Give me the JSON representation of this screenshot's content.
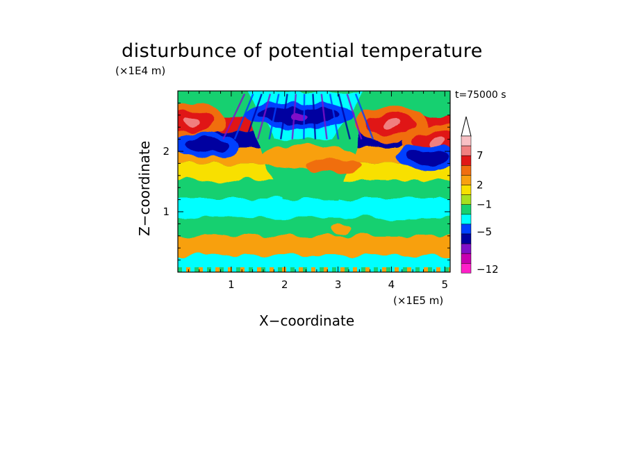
{
  "chart_data": {
    "type": "heatmap",
    "title": "disturbunce of potential temperature",
    "xlabel": "X−coordinate",
    "ylabel": "Z−coordinate",
    "x_unit": "(×1E5 m)",
    "y_unit": "(×1E4 m)",
    "annotation": "t=75000 s",
    "xlim": [
      0,
      5.1
    ],
    "ylim": [
      0,
      3.0
    ],
    "x_ticks": [
      1,
      2,
      3,
      4,
      5
    ],
    "y_ticks": [
      1,
      2
    ],
    "x_tick_labels": [
      "1",
      "2",
      "3",
      "4",
      "5"
    ],
    "y_tick_labels": [
      "1",
      "2"
    ],
    "colorbar": {
      "orientation": "vertical",
      "extend": "max",
      "tick_labels": [
        "7",
        "2",
        "−1",
        "−5",
        "−12"
      ],
      "tick_values": [
        7,
        2,
        -1,
        -5,
        -12
      ],
      "colors_top_to_bottom": [
        "#f8c0c4",
        "#f08080",
        "#e01818",
        "#f06e10",
        "#f8a010",
        "#f8e000",
        "#a8e020",
        "#18d070",
        "#00ffff",
        "#0040ff",
        "#0000a0",
        "#8010c8",
        "#c800b0",
        "#ff20c8"
      ]
    },
    "bands": [
      {
        "z": 0.1,
        "value": -2
      },
      {
        "z": 0.45,
        "value": 3
      },
      {
        "z": 0.75,
        "value": 0
      },
      {
        "z": 1.05,
        "value": -1
      },
      {
        "z": 1.4,
        "value": 0
      },
      {
        "z": 1.65,
        "value": 2
      },
      {
        "z": 1.95,
        "value": 3
      },
      {
        "z": 2.2,
        "value": -6
      },
      {
        "z": 2.45,
        "value": 7
      },
      {
        "z": 2.7,
        "value": 0
      }
    ],
    "features": [
      {
        "name": "warm anomaly",
        "x": 0.25,
        "z": 2.5,
        "value": 9
      },
      {
        "name": "warm anomaly",
        "x": 4.0,
        "z": 2.45,
        "value": 8
      },
      {
        "name": "warm anomaly",
        "x": 4.85,
        "z": 2.15,
        "value": 9
      },
      {
        "name": "cold anomaly",
        "x": 2.25,
        "z": 2.6,
        "value": -8
      },
      {
        "name": "cold anomaly",
        "x": 0.5,
        "z": 2.1,
        "value": -7
      },
      {
        "name": "cold anomaly",
        "x": 4.7,
        "z": 1.9,
        "value": -7
      }
    ]
  }
}
